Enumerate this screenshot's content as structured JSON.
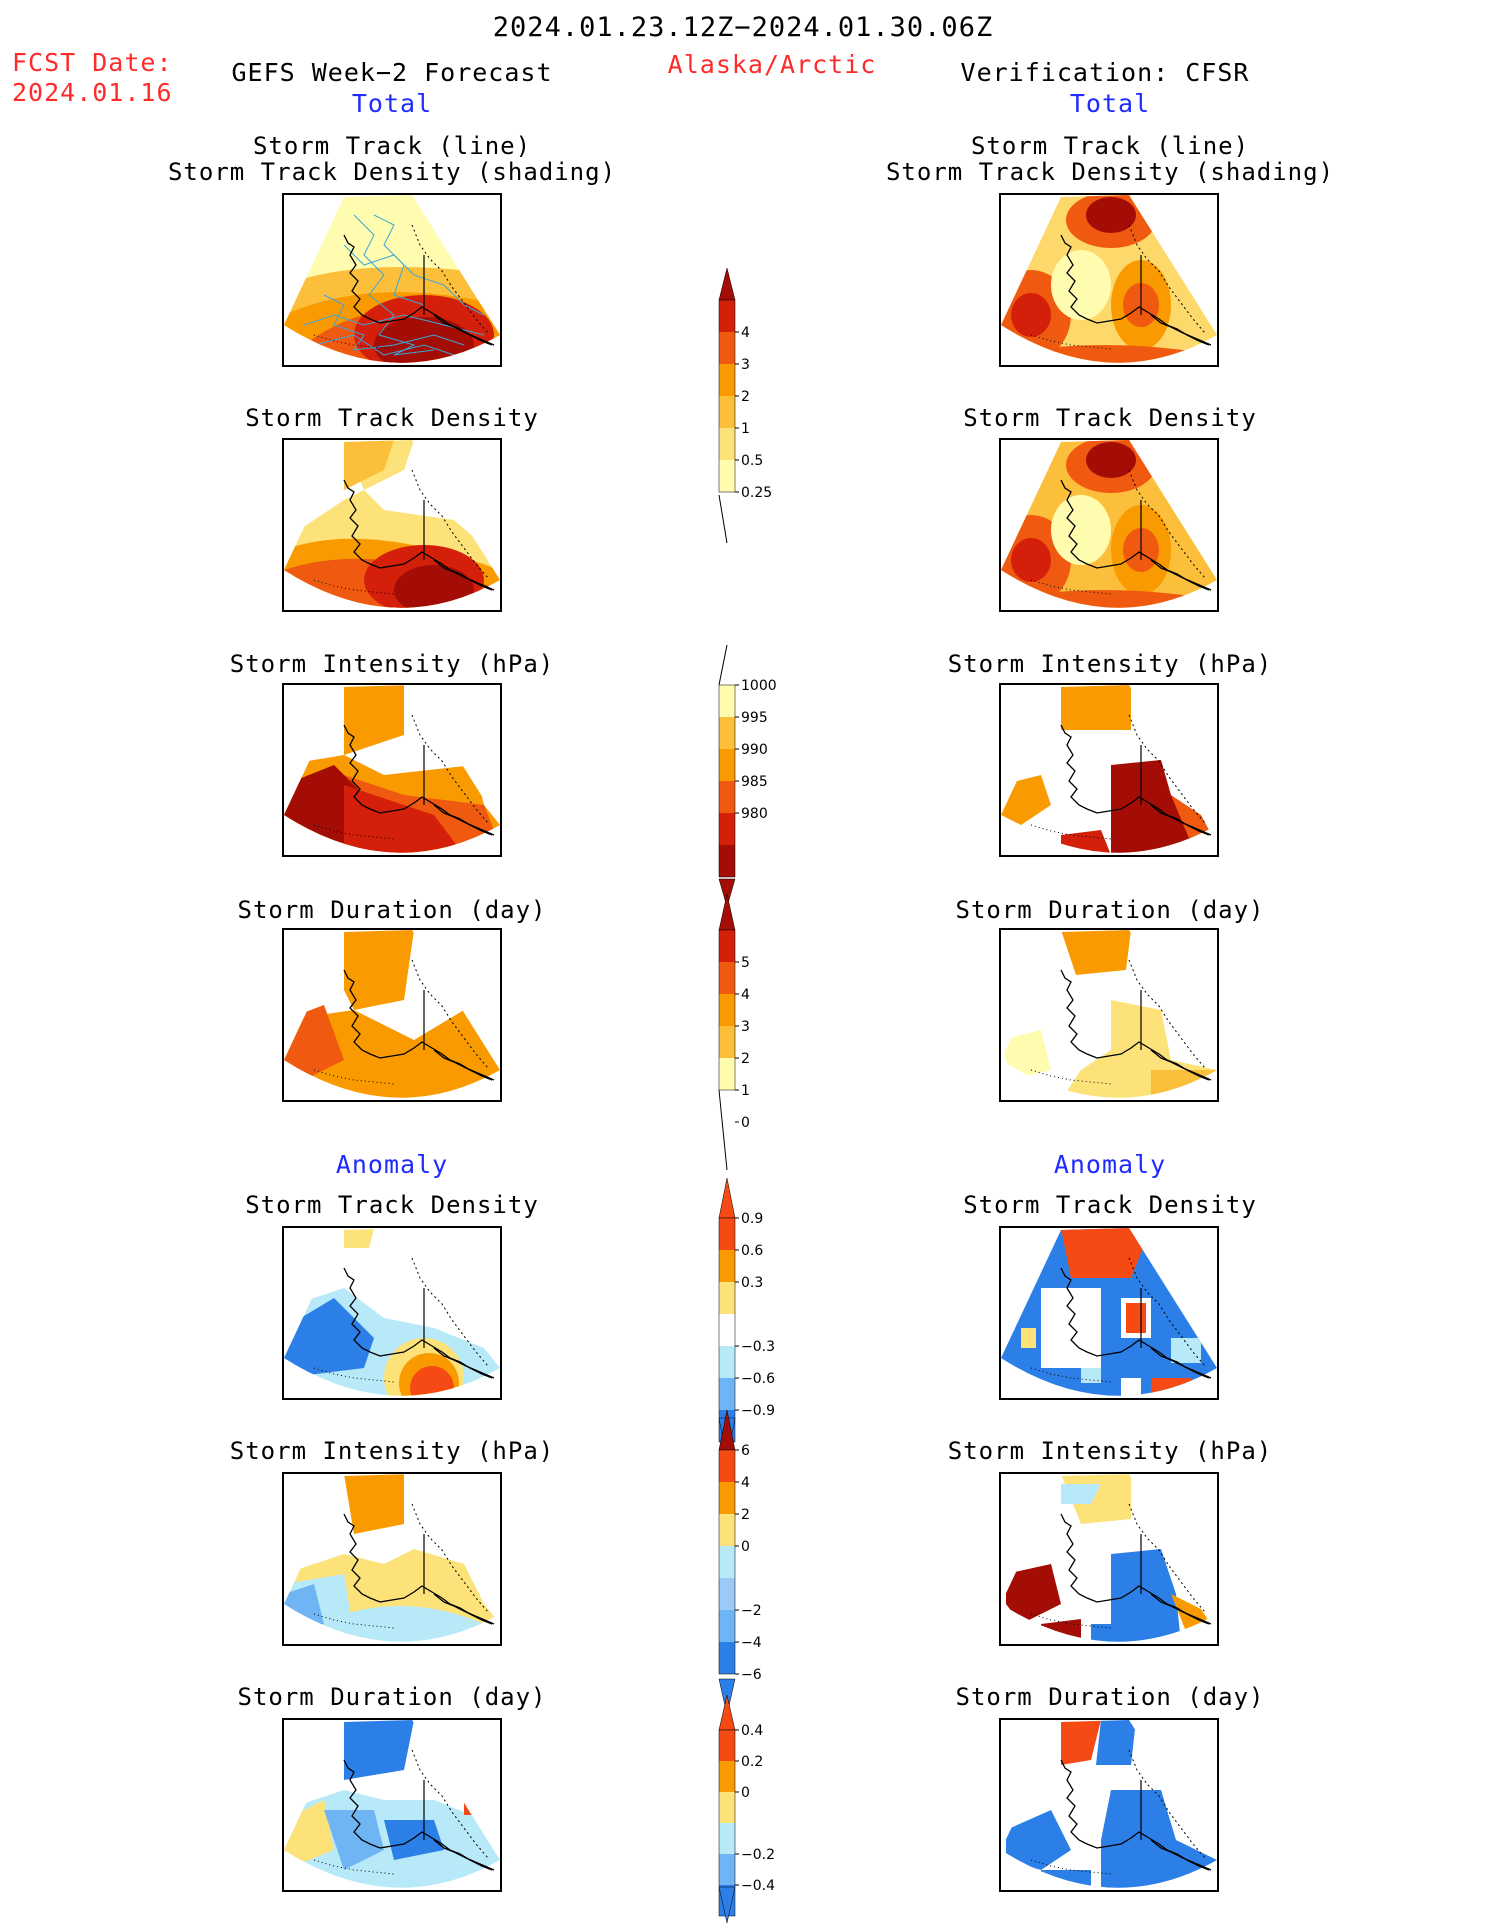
{
  "header": {
    "title": "2024.01.23.12Z−2024.01.30.06Z",
    "region": "Alaska/Arctic",
    "fcst_date_label": "FCST Date:",
    "fcst_date_value": "2024.01.16",
    "left_title": "GEFS Week−2 Forecast",
    "left_subtitle": "Total",
    "right_title": "Verification: CFSR",
    "right_subtitle": "Total",
    "anomaly_left": "Anomaly",
    "anomaly_right": "Anomaly"
  },
  "panels": {
    "track_line_1": "Storm Track (line)",
    "track_line_2": "Storm Track Density (shading)",
    "density": "Storm Track Density",
    "intensity": "Storm Intensity (hPa)",
    "duration": "Storm Duration (day)"
  },
  "colorbars": [
    {
      "id": "density",
      "labels": [
        "0.25",
        "0.5",
        "1",
        "2",
        "3",
        "4"
      ],
      "colors": [
        "#fffcb0",
        "#fde27a",
        "#fbbf3c",
        "#f99b00",
        "#f05a10",
        "#d4200a"
      ],
      "top": "#a30d05",
      "dir": "up"
    },
    {
      "id": "intensity",
      "labels": [
        "1000",
        "995",
        "990",
        "985",
        "980"
      ],
      "colors": [
        "#fffcb0",
        "#fbbf3c",
        "#f99b00",
        "#f05a10",
        "#d4200a",
        "#a30d05"
      ],
      "dir": "down"
    },
    {
      "id": "duration",
      "labels": [
        "0",
        "1",
        "2",
        "3",
        "4",
        "5"
      ],
      "colors": [
        "#fffcb0",
        "#fbbf3c",
        "#f99b00",
        "#f05a10",
        "#d4200a"
      ],
      "top": "#a30d05",
      "dir": "up"
    },
    {
      "id": "density_anom",
      "labels": [
        "0.9",
        "0.6",
        "0.3",
        "−0.3",
        "−0.6",
        "−0.9"
      ],
      "colors": [
        "#f54a14",
        "#f99b00",
        "#fde27a",
        "#ffffff",
        "#b8e9f8",
        "#6fb4f3",
        "#2d7fe8"
      ]
    },
    {
      "id": "intensity_anom",
      "labels": [
        "6",
        "4",
        "2",
        "0",
        "−2",
        "−4",
        "−6"
      ],
      "colors": [
        "#f54a14",
        "#f99b00",
        "#fde27a",
        "#b8e9f8",
        "#9ccaf6",
        "#6fb4f3",
        "#2d7fe8"
      ]
    },
    {
      "id": "duration_anom",
      "labels": [
        "0.4",
        "0.2",
        "0",
        "−0.2",
        "−0.4"
      ],
      "colors": [
        "#f54a14",
        "#f99b00",
        "#fde27a",
        "#b8e9f8",
        "#6fb4f3",
        "#2d7fe8"
      ]
    }
  ],
  "colors": {
    "red": "#ff2a2a",
    "blue": "#1f2bff",
    "track_line": "#3aa6d8"
  }
}
